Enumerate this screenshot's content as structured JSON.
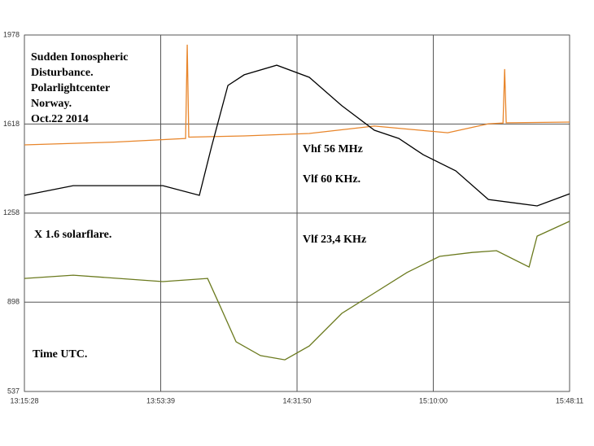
{
  "chart_data": {
    "type": "line",
    "title": [
      "Sudden Ionospheric",
      "Disturbance.",
      "Polarlightcenter",
      "Norway.",
      "Oct.22 2014"
    ],
    "annotations": [
      "X 1.6 solarflare.",
      "Time UTC."
    ],
    "xlim": [
      "13:15:28",
      "15:48:11"
    ],
    "xticks": [
      "13:15:28",
      "13:53:39",
      "14:31:50",
      "15:10:00",
      "15:48:11"
    ],
    "ylim": [
      537,
      1978
    ],
    "yticks": [
      537,
      898,
      1258,
      1618,
      1978
    ],
    "grid": true,
    "series": [
      {
        "name": "Vhf 56 MHz",
        "color": "#e8852a",
        "x": [
          "13:15:28",
          "13:40:33",
          "14:00:37",
          "14:01:04",
          "14:01:31",
          "14:17:02",
          "14:35:16",
          "14:53:30",
          "15:14:02",
          "15:25:26",
          "15:29:32",
          "15:29:59",
          "15:30:26",
          "15:48:11"
        ],
        "values": [
          1534,
          1545,
          1560,
          1939,
          1565,
          1570,
          1580,
          1610,
          1583,
          1619,
          1622,
          1840,
          1623,
          1626
        ]
      },
      {
        "name": "Vlf 60 KHz.",
        "color": "#000000",
        "x": [
          "13:15:28",
          "13:29:09",
          "13:54:14",
          "14:04:29",
          "14:07:54",
          "14:12:28",
          "14:17:02",
          "14:26:09",
          "14:35:16",
          "14:44:23",
          "14:53:30",
          "15:00:21",
          "15:07:11",
          "15:16:18",
          "15:25:26",
          "15:39:06",
          "15:48:11"
        ],
        "values": [
          1330,
          1369,
          1369,
          1330,
          1527,
          1774,
          1817,
          1856,
          1807,
          1692,
          1593,
          1560,
          1494,
          1429,
          1313,
          1287,
          1336
        ]
      },
      {
        "name": "Vlf 23,4 KHz",
        "color": "#6b7a1e",
        "x": [
          "13:15:28",
          "13:29:09",
          "13:54:14",
          "14:06:46",
          "14:10:11",
          "14:14:45",
          "14:21:35",
          "14:28:26",
          "14:35:16",
          "14:44:23",
          "14:53:30",
          "15:02:38",
          "15:11:45",
          "15:20:52",
          "15:27:43",
          "15:36:50",
          "15:39:06",
          "15:48:11"
        ],
        "values": [
          994,
          1007,
          981,
          994,
          885,
          738,
          682,
          665,
          721,
          853,
          935,
          1018,
          1083,
          1099,
          1106,
          1040,
          1165,
          1225
        ]
      }
    ]
  }
}
